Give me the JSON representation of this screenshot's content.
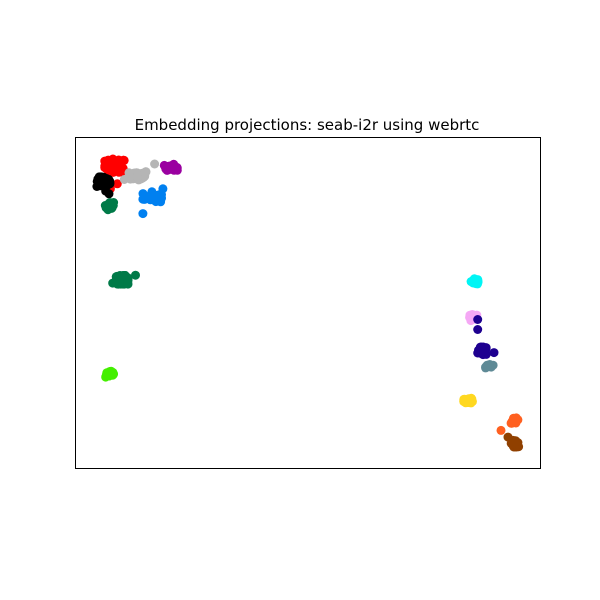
{
  "chart_data": {
    "type": "scatter",
    "title": "Embedding projections: seab-i2r using webrtc",
    "xlabel": "",
    "ylabel": "",
    "xlim": [
      0,
      100
    ],
    "ylim": [
      0,
      100
    ],
    "grid": false,
    "axes_ticks": false,
    "clusters": [
      {
        "color": "#ff0000",
        "center": [
          8.5,
          91.5
        ],
        "spread": [
          2.2,
          2.0
        ],
        "count": 60,
        "extra": [
          [
            7.5,
            84.5
          ],
          [
            9.0,
            86.0
          ]
        ]
      },
      {
        "color": "#000000",
        "center": [
          6.0,
          86.5
        ],
        "spread": [
          1.4,
          1.6
        ],
        "count": 55,
        "extra": [
          [
            6.5,
            83.8
          ],
          [
            7.2,
            83.0
          ]
        ]
      },
      {
        "color": "#b5b5b5",
        "center": [
          13.5,
          88.5
        ],
        "spread": [
          2.0,
          1.4
        ],
        "count": 55,
        "extra": [
          [
            10.5,
            87.3
          ],
          [
            17.0,
            92.0
          ]
        ]
      },
      {
        "color": "#9a00a0",
        "center": [
          20.5,
          91.0
        ],
        "spread": [
          1.4,
          0.9
        ],
        "count": 30,
        "extra": []
      },
      {
        "color": "#0080f0",
        "center": [
          16.5,
          82.0
        ],
        "spread": [
          2.0,
          1.6
        ],
        "count": 25,
        "extra": [
          [
            14.5,
            77.0
          ],
          [
            18.8,
            84.5
          ]
        ]
      },
      {
        "color": "#007a48",
        "center": [
          7.3,
          79.3
        ],
        "spread": [
          0.9,
          1.1
        ],
        "count": 25,
        "extra": []
      },
      {
        "color": "#007a48",
        "center": [
          10.0,
          57.0
        ],
        "spread": [
          1.3,
          1.3
        ],
        "count": 70,
        "extra": [
          [
            12.9,
            58.4
          ],
          [
            8.0,
            56.0
          ]
        ]
      },
      {
        "color": "#44ef00",
        "center": [
          7.5,
          28.5
        ],
        "spread": [
          1.0,
          0.9
        ],
        "count": 35,
        "extra": []
      },
      {
        "color": "#00f5f5",
        "center": [
          86.0,
          56.5
        ],
        "spread": [
          0.9,
          0.8
        ],
        "count": 25,
        "extra": []
      },
      {
        "color": "#f5a8f5",
        "center": [
          85.5,
          45.5
        ],
        "spread": [
          0.9,
          1.0
        ],
        "count": 30,
        "extra": []
      },
      {
        "color": "#1e0090",
        "center": [
          87.5,
          35.5
        ],
        "spread": [
          1.0,
          1.2
        ],
        "count": 30,
        "extra": [
          [
            86.5,
            42.0
          ],
          [
            86.5,
            45.0
          ],
          [
            90.0,
            35.0
          ]
        ]
      },
      {
        "color": "#5f8a96",
        "center": [
          89.0,
          31.0
        ],
        "spread": [
          0.8,
          0.6
        ],
        "count": 20,
        "extra": []
      },
      {
        "color": "#ffd820",
        "center": [
          84.5,
          20.5
        ],
        "spread": [
          1.0,
          0.7
        ],
        "count": 30,
        "extra": []
      },
      {
        "color": "#ff6020",
        "center": [
          94.5,
          14.5
        ],
        "spread": [
          0.9,
          0.8
        ],
        "count": 18,
        "extra": [
          [
            91.5,
            11.5
          ]
        ]
      },
      {
        "color": "#904000",
        "center": [
          94.5,
          7.5
        ],
        "spread": [
          0.8,
          1.0
        ],
        "count": 30,
        "extra": [
          [
            93.0,
            9.5
          ]
        ]
      }
    ]
  }
}
